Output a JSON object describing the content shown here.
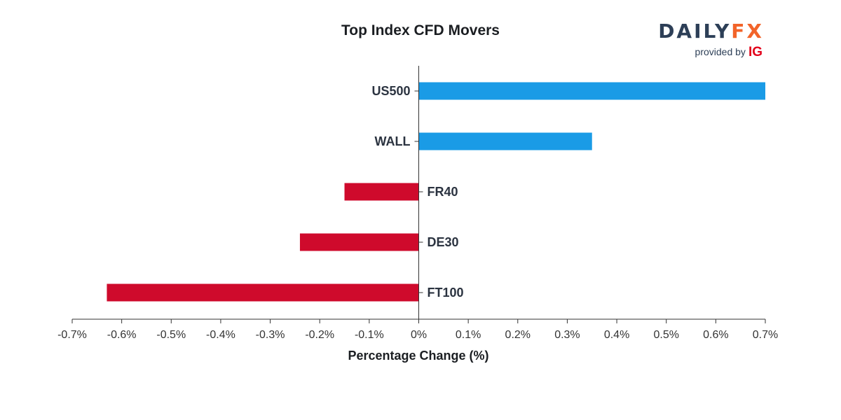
{
  "chart_data": {
    "type": "bar",
    "orientation": "horizontal",
    "title": "Top Index CFD Movers",
    "xlabel": "Percentage Change (%)",
    "ylabel": "",
    "xlim": [
      -0.7,
      0.7
    ],
    "xticks": [
      -0.7,
      -0.6,
      -0.5,
      -0.4,
      -0.3,
      -0.2,
      -0.1,
      0,
      0.1,
      0.2,
      0.3,
      0.4,
      0.5,
      0.6,
      0.7
    ],
    "xtick_labels": [
      "-0.7%",
      "-0.6%",
      "-0.5%",
      "-0.4%",
      "-0.3%",
      "-0.2%",
      "-0.1%",
      "0%",
      "0.1%",
      "0.2%",
      "0.3%",
      "0.4%",
      "0.5%",
      "0.6%",
      "0.7%"
    ],
    "categories": [
      "US500",
      "WALL",
      "FR40",
      "DE30",
      "FT100"
    ],
    "values": [
      0.7,
      0.35,
      -0.15,
      -0.24,
      -0.63
    ],
    "grid": false,
    "colors": {
      "positive": "#1a9be6",
      "negative": "#cf0a2c"
    }
  },
  "branding": {
    "logo_part1": "DAILY",
    "logo_part2": "FX",
    "provided_by": "provided by",
    "provider": "IG"
  }
}
